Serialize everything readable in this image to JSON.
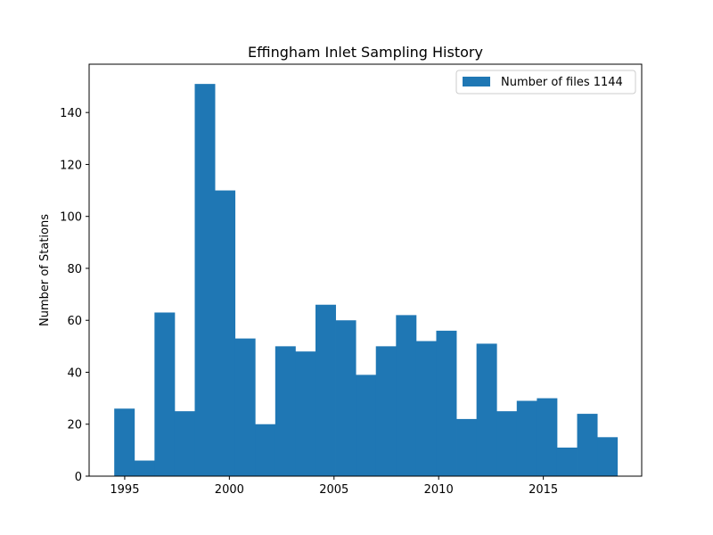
{
  "chart_data": {
    "type": "bar",
    "title": "Effingham Inlet Sampling History",
    "xlabel": "",
    "ylabel": "Number of Stations",
    "bin_start": 1994.5,
    "bin_width": 0.9615,
    "values": [
      26,
      6,
      63,
      25,
      151,
      110,
      53,
      20,
      50,
      48,
      66,
      60,
      39,
      50,
      62,
      52,
      56,
      22,
      51,
      25,
      29,
      30,
      11,
      24,
      15
    ],
    "xlim": [
      1993.3,
      2019.7
    ],
    "ylim": [
      0,
      158.6
    ],
    "xticks": [
      1995,
      2000,
      2005,
      2010,
      2015
    ],
    "xtick_labels": [
      "1995",
      "2000",
      "2005",
      "2010",
      "2015"
    ],
    "yticks": [
      0,
      20,
      40,
      60,
      80,
      100,
      120,
      140
    ],
    "ytick_labels": [
      "0",
      "20",
      "40",
      "60",
      "80",
      "100",
      "120",
      "140"
    ],
    "grid": false,
    "legend_position": "top-right",
    "series": [
      {
        "name": "Number of files 1144",
        "color": "#1f77b4"
      }
    ]
  }
}
